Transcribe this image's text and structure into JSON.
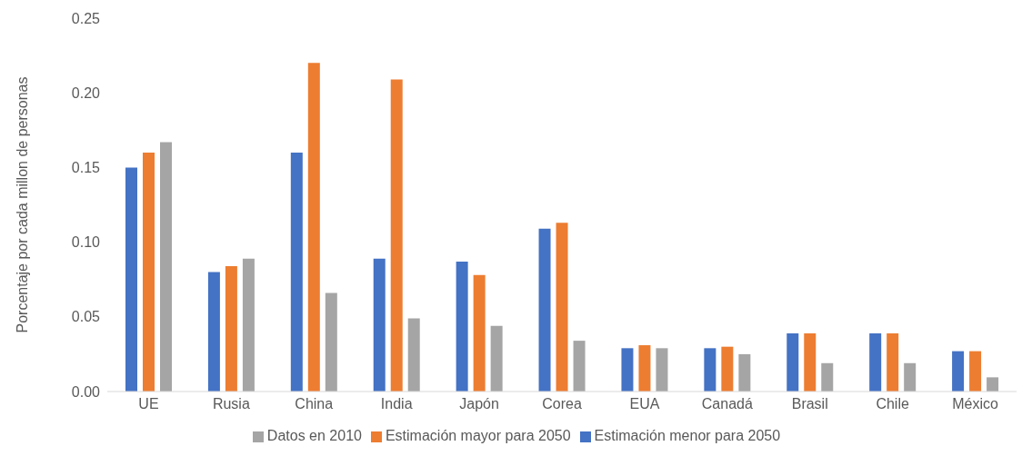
{
  "chart_data": {
    "type": "bar",
    "ylabel": "Porcentaje por cada millon de personas",
    "categories": [
      "UE",
      "Rusia",
      "China",
      "India",
      "Japón",
      "Corea",
      "EUA",
      "Canadá",
      "Brasil",
      "Chile",
      "México"
    ],
    "series": [
      {
        "name": "Estimación menor para 2050",
        "color": "#4472c4",
        "values": [
          0.15,
          0.08,
          0.16,
          0.089,
          0.087,
          0.109,
          0.029,
          0.029,
          0.039,
          0.039,
          0.027
        ]
      },
      {
        "name": "Estimación mayor para 2050",
        "color": "#ed7d31",
        "values": [
          0.16,
          0.084,
          0.22,
          0.209,
          0.078,
          0.113,
          0.031,
          0.03,
          0.039,
          0.039,
          0.027
        ]
      },
      {
        "name": "Datos en 2010",
        "color": "#a5a5a5",
        "values": [
          0.167,
          0.089,
          0.066,
          0.049,
          0.044,
          0.034,
          0.029,
          0.025,
          0.019,
          0.019,
          0.0095
        ]
      }
    ],
    "ylim": [
      0,
      0.25
    ],
    "yticks": [
      {
        "value": 0,
        "label": "0.00"
      },
      {
        "value": 0.05,
        "label": "0.05"
      },
      {
        "value": 0.1,
        "label": "0.10"
      },
      {
        "value": 0.15,
        "label": "0.15"
      },
      {
        "value": 0.2,
        "label": "0.20"
      },
      {
        "value": 0.25,
        "label": "0.25"
      }
    ],
    "grid": false,
    "legend": "bottom"
  }
}
